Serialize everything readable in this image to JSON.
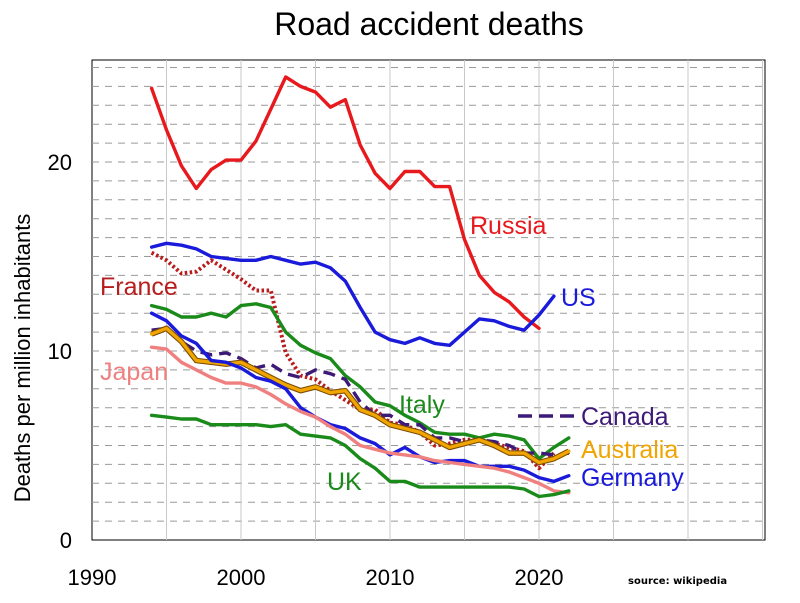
{
  "page": {
    "title": "Road accident deaths",
    "source": "source: wikipedia"
  },
  "chart_data": {
    "type": "line",
    "title": "Road accident deaths",
    "xlabel": "",
    "ylabel": "Deaths per million inhabitants",
    "xlim": [
      1990,
      2040
    ],
    "ylim": [
      0,
      25
    ],
    "xticks": [
      1990,
      2000,
      2010,
      2020
    ],
    "yticks": [
      0,
      10,
      20
    ],
    "grid": "dashed horizontal every 1 unit, vertical lines every 5 years",
    "series": [
      {
        "name": "Russia",
        "color": "#e8191c",
        "dash": "solid",
        "x": [
          1994,
          1995,
          1996,
          1997,
          1998,
          1999,
          2000,
          2001,
          2002,
          2003,
          2004,
          2005,
          2006,
          2007,
          2008,
          2009,
          2010,
          2011,
          2012,
          2013,
          2014,
          2015,
          2016,
          2017,
          2018,
          2019,
          2020
        ],
        "y": [
          23.9,
          21.7,
          19.8,
          18.6,
          19.6,
          20.1,
          20.1,
          21.1,
          22.8,
          24.5,
          24.0,
          23.7,
          22.9,
          23.3,
          20.9,
          19.4,
          18.6,
          19.5,
          19.5,
          18.7,
          18.7,
          15.9,
          14.0,
          13.1,
          12.6,
          11.8,
          11.2
        ]
      },
      {
        "name": "US",
        "color": "#1a1adb",
        "dash": "solid",
        "x": [
          1994,
          1995,
          1996,
          1997,
          1998,
          1999,
          2000,
          2001,
          2002,
          2003,
          2004,
          2005,
          2006,
          2007,
          2008,
          2009,
          2010,
          2011,
          2012,
          2013,
          2014,
          2015,
          2016,
          2017,
          2018,
          2019,
          2020,
          2021
        ],
        "y": [
          15.5,
          15.7,
          15.6,
          15.4,
          15.0,
          14.9,
          14.8,
          14.8,
          15.0,
          14.8,
          14.6,
          14.7,
          14.4,
          13.7,
          12.3,
          11.0,
          10.6,
          10.4,
          10.7,
          10.4,
          10.3,
          11.0,
          11.7,
          11.6,
          11.3,
          11.1,
          11.9,
          12.9
        ]
      },
      {
        "name": "France",
        "color": "#b81c1c",
        "dash": "dotted",
        "x": [
          1994,
          1995,
          1996,
          1997,
          1998,
          1999,
          2000,
          2001,
          2002,
          2003,
          2004,
          2005,
          2006,
          2007,
          2008,
          2009,
          2010,
          2011,
          2012,
          2013,
          2014,
          2015,
          2016,
          2017,
          2018,
          2019,
          2020,
          2021
        ],
        "y": [
          15.2,
          14.8,
          14.1,
          14.2,
          14.8,
          14.3,
          13.8,
          13.2,
          13.2,
          9.9,
          8.7,
          8.5,
          7.9,
          7.4,
          6.9,
          6.9,
          6.2,
          6.1,
          5.7,
          5.0,
          5.1,
          5.3,
          5.3,
          5.1,
          4.9,
          4.7,
          3.8,
          4.6
        ]
      },
      {
        "name": "Italy",
        "color": "#1a8a1a",
        "dash": "solid",
        "x": [
          1994,
          1995,
          1996,
          1997,
          1998,
          1999,
          2000,
          2001,
          2002,
          2003,
          2004,
          2005,
          2006,
          2007,
          2008,
          2009,
          2010,
          2011,
          2012,
          2013,
          2014,
          2015,
          2016,
          2017,
          2018,
          2019,
          2020,
          2021,
          2022
        ],
        "y": [
          12.4,
          12.2,
          11.8,
          11.8,
          12.0,
          11.8,
          12.4,
          12.5,
          12.3,
          11.0,
          10.3,
          9.9,
          9.6,
          8.7,
          8.1,
          7.3,
          7.1,
          6.6,
          6.2,
          5.7,
          5.6,
          5.6,
          5.4,
          5.6,
          5.5,
          5.3,
          4.3,
          4.9,
          5.4
        ]
      },
      {
        "name": "Canada",
        "color": "#3d1a78",
        "dash": "dashed",
        "x": [
          1994,
          1995,
          1996,
          1997,
          1998,
          1999,
          2000,
          2001,
          2002,
          2003,
          2004,
          2005,
          2006,
          2007,
          2008,
          2009,
          2010,
          2011,
          2012,
          2013,
          2014,
          2015,
          2016,
          2017,
          2018,
          2019,
          2020,
          2021,
          2022
        ],
        "y": [
          11.1,
          11.2,
          10.5,
          10.0,
          9.8,
          9.9,
          9.6,
          9.1,
          9.3,
          8.8,
          8.6,
          9.0,
          8.8,
          8.5,
          7.3,
          6.6,
          6.6,
          6.1,
          6.1,
          5.4,
          5.4,
          5.2,
          5.3,
          5.2,
          5.0,
          4.6,
          4.6,
          4.5,
          4.6
        ]
      },
      {
        "name": "Australia",
        "color": "#f0a500",
        "dash": "solid",
        "x": [
          1994,
          1995,
          1996,
          1997,
          1998,
          1999,
          2000,
          2001,
          2002,
          2003,
          2004,
          2005,
          2006,
          2007,
          2008,
          2009,
          2010,
          2011,
          2012,
          2013,
          2014,
          2015,
          2016,
          2017,
          2018,
          2019,
          2020,
          2021,
          2022
        ],
        "y": [
          10.9,
          11.2,
          10.5,
          9.5,
          9.4,
          9.3,
          9.4,
          9.0,
          8.6,
          8.2,
          7.9,
          8.1,
          7.8,
          7.9,
          6.9,
          6.6,
          6.1,
          5.9,
          5.7,
          5.3,
          4.9,
          5.1,
          5.3,
          5.0,
          4.6,
          4.6,
          4.1,
          4.3,
          4.7
        ]
      },
      {
        "name": "Germany",
        "color": "#1a1adb",
        "dash": "solid",
        "x": [
          1994,
          1995,
          1996,
          1997,
          1998,
          1999,
          2000,
          2001,
          2002,
          2003,
          2004,
          2005,
          2006,
          2007,
          2008,
          2009,
          2010,
          2011,
          2012,
          2013,
          2014,
          2015,
          2016,
          2017,
          2018,
          2019,
          2020,
          2021,
          2022
        ],
        "y": [
          12.0,
          11.6,
          10.8,
          10.4,
          9.5,
          9.4,
          9.1,
          8.6,
          8.4,
          8.0,
          7.0,
          6.5,
          6.1,
          5.9,
          5.4,
          5.1,
          4.5,
          4.9,
          4.4,
          4.1,
          4.2,
          4.2,
          3.9,
          3.9,
          3.9,
          3.7,
          3.3,
          3.1,
          3.4
        ]
      },
      {
        "name": "Japan",
        "color": "#f08080",
        "dash": "solid",
        "x": [
          1994,
          1995,
          1996,
          1997,
          1998,
          1999,
          2000,
          2001,
          2002,
          2003,
          2004,
          2005,
          2006,
          2007,
          2008,
          2009,
          2010,
          2011,
          2012,
          2013,
          2014,
          2015,
          2016,
          2017,
          2018,
          2019,
          2020,
          2021,
          2022
        ],
        "y": [
          10.2,
          10.1,
          9.4,
          9.0,
          8.6,
          8.3,
          8.3,
          8.1,
          7.7,
          7.2,
          6.8,
          6.5,
          6.0,
          5.6,
          5.0,
          4.8,
          4.6,
          4.5,
          4.4,
          4.2,
          4.1,
          4.0,
          3.9,
          3.8,
          3.6,
          3.3,
          3.0,
          2.6,
          2.5
        ]
      },
      {
        "name": "UK",
        "color": "#1a8a1a",
        "dash": "solid",
        "x": [
          1994,
          1995,
          1996,
          1997,
          1998,
          1999,
          2000,
          2001,
          2002,
          2003,
          2004,
          2005,
          2006,
          2007,
          2008,
          2009,
          2010,
          2011,
          2012,
          2013,
          2014,
          2015,
          2016,
          2017,
          2018,
          2019,
          2020,
          2021,
          2022
        ],
        "y": [
          6.6,
          6.5,
          6.4,
          6.4,
          6.1,
          6.1,
          6.1,
          6.1,
          6.0,
          6.1,
          5.6,
          5.5,
          5.4,
          5.0,
          4.3,
          3.8,
          3.1,
          3.1,
          2.8,
          2.8,
          2.8,
          2.8,
          2.8,
          2.8,
          2.8,
          2.7,
          2.3,
          2.4,
          2.6
        ]
      }
    ],
    "labels": [
      {
        "text": "Russia",
        "color": "#e8191c"
      },
      {
        "text": "US",
        "color": "#1a1adb"
      },
      {
        "text": "France",
        "color": "#b81c1c"
      },
      {
        "text": "Japan",
        "color": "#f08080"
      },
      {
        "text": "Italy",
        "color": "#1a8a1a"
      },
      {
        "text": "UK",
        "color": "#1a8a1a"
      },
      {
        "text": "Canada",
        "color": "#3d1a78"
      },
      {
        "text": "Australia",
        "color": "#f0a500"
      },
      {
        "text": "Germany",
        "color": "#1a1adb"
      }
    ]
  }
}
